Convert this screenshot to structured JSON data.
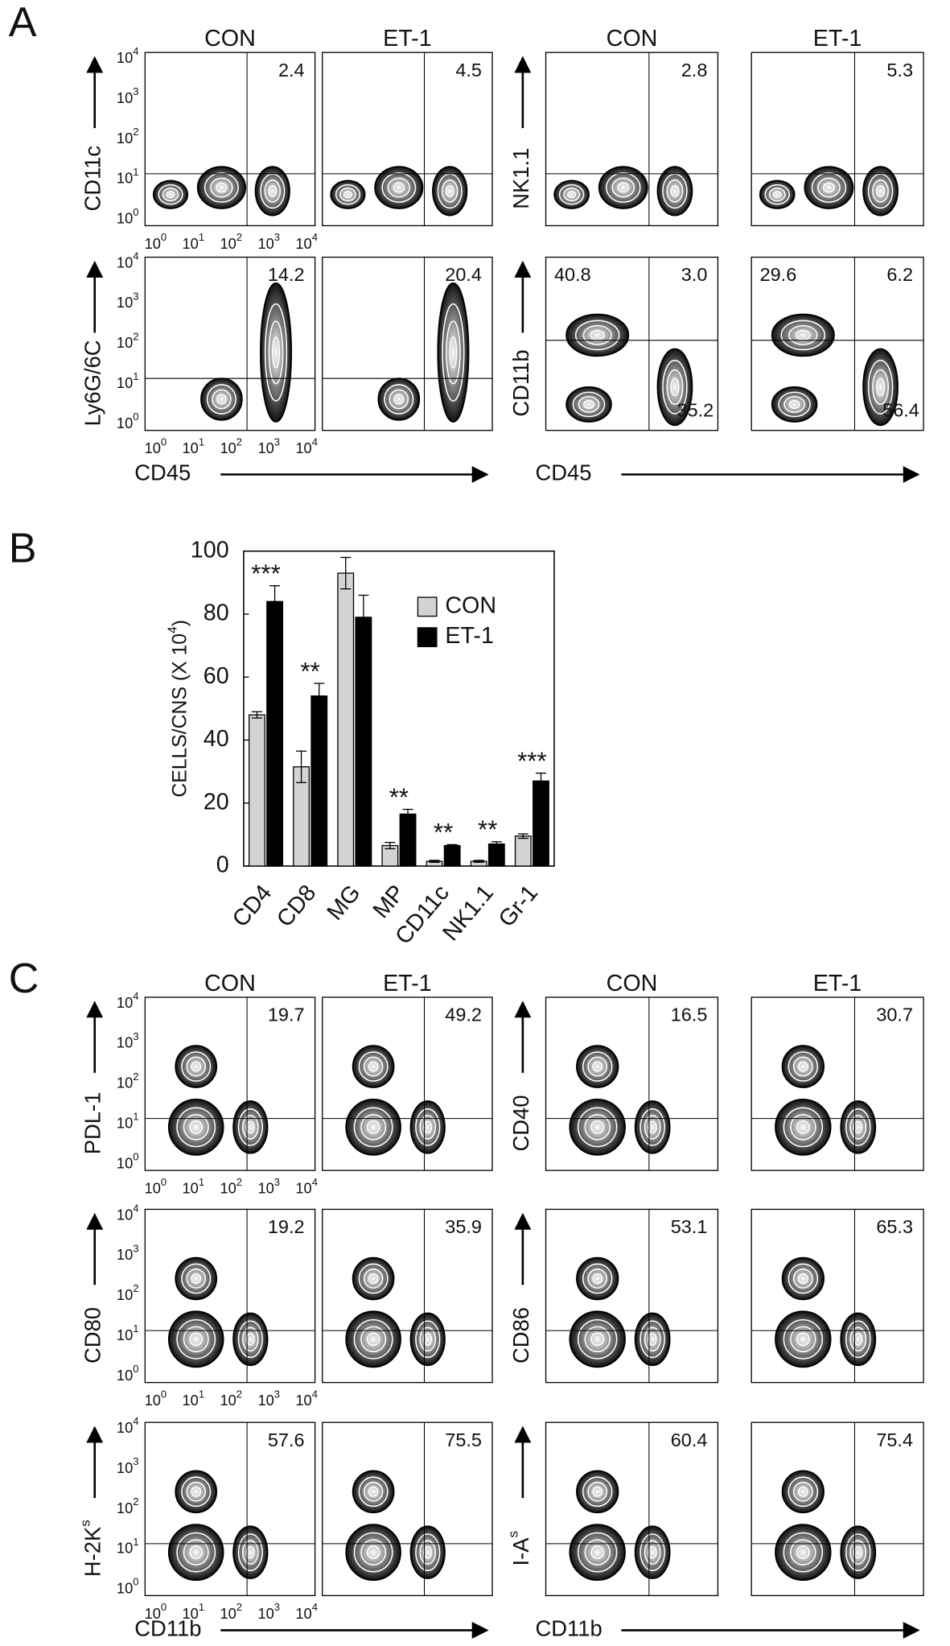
{
  "panel_a": {
    "label": "A",
    "grids": [
      {
        "columns": [
          "CON",
          "ET-1"
        ],
        "x_label": "CD45",
        "rows": [
          {
            "y_label": {
              "text": "CD11c"
            },
            "quadrants": [
              {
                "upper_right": "2.4"
              },
              {
                "upper_right": "4.5"
              }
            ]
          },
          {
            "y_label": {
              "text": "Ly6G/6C"
            },
            "quadrants": [
              {
                "upper_right": "14.2"
              },
              {
                "upper_right": "20.4"
              }
            ]
          }
        ]
      },
      {
        "columns": [
          "CON",
          "ET-1"
        ],
        "x_label": "CD45",
        "rows": [
          {
            "y_label": {
              "text": "NK1.1"
            },
            "quadrants": [
              {
                "upper_right": "2.8"
              },
              {
                "upper_right": "5.3"
              }
            ]
          },
          {
            "y_label": {
              "text": "CD11b"
            },
            "quadrants": [
              {
                "upper_left": "40.8",
                "upper_right": "3.0",
                "lower_right": "35.2"
              },
              {
                "upper_left": "29.6",
                "upper_right": "6.2",
                "lower_right": "56.4"
              }
            ]
          }
        ]
      }
    ]
  },
  "axis_ticks": [
    {
      "base": "10",
      "sup": "0"
    },
    {
      "base": "10",
      "sup": "1"
    },
    {
      "base": "10",
      "sup": "2"
    },
    {
      "base": "10",
      "sup": "3"
    },
    {
      "base": "10",
      "sup": "4"
    }
  ],
  "chart_data": {
    "type": "bar",
    "panel_label": "B",
    "y_label": {
      "text": "CELLS/CNS (X 10",
      "sup": "4",
      "tail": ")"
    },
    "categories": [
      "CD4",
      "CD8",
      "MG",
      "MP",
      "CD11c",
      "NK1.1",
      "Gr-1"
    ],
    "series": [
      {
        "name": "CON",
        "color": "#d3d3d3",
        "values": [
          48,
          31.5,
          93,
          6.5,
          1.5,
          1.5,
          9.5
        ],
        "errors": [
          1,
          5,
          5,
          1,
          0.3,
          0.3,
          0.7
        ]
      },
      {
        "name": "ET-1",
        "color": "#000000",
        "values": [
          84,
          54,
          79,
          16.5,
          6.5,
          7,
          27
        ],
        "errors": [
          5,
          4,
          7,
          1.5,
          0.3,
          0.7,
          2.5
        ]
      }
    ],
    "significance": [
      "***",
      "**",
      null,
      "**",
      "**",
      "**",
      "***"
    ],
    "ylim": [
      0,
      100
    ],
    "yticks": [
      0,
      20,
      40,
      60,
      80,
      100
    ],
    "legend": "upper-right"
  },
  "panel_c": {
    "label": "C",
    "grids": [
      {
        "columns": [
          "CON",
          "ET-1"
        ],
        "x_label": "CD11b",
        "rows": [
          {
            "y_label": {
              "text": "PDL-1"
            },
            "quadrants": [
              {
                "upper_right": "19.7"
              },
              {
                "upper_right": "49.2"
              }
            ]
          },
          {
            "y_label": {
              "text": "CD80"
            },
            "quadrants": [
              {
                "upper_right": "19.2"
              },
              {
                "upper_right": "35.9"
              }
            ]
          },
          {
            "y_label": {
              "text": "H-2K",
              "sup": "s"
            },
            "quadrants": [
              {
                "upper_right": "57.6"
              },
              {
                "upper_right": "75.5"
              }
            ]
          }
        ]
      },
      {
        "columns": [
          "CON",
          "ET-1"
        ],
        "x_label": "CD11b",
        "rows": [
          {
            "y_label": {
              "text": "CD40"
            },
            "quadrants": [
              {
                "upper_right": "16.5"
              },
              {
                "upper_right": "30.7"
              }
            ]
          },
          {
            "y_label": {
              "text": "CD86"
            },
            "quadrants": [
              {
                "upper_right": "53.1"
              },
              {
                "upper_right": "65.3"
              }
            ]
          },
          {
            "y_label": {
              "text": "I-A",
              "sup": "s"
            },
            "quadrants": [
              {
                "upper_right": "60.4"
              },
              {
                "upper_right": "75.4"
              }
            ]
          }
        ]
      }
    ]
  }
}
